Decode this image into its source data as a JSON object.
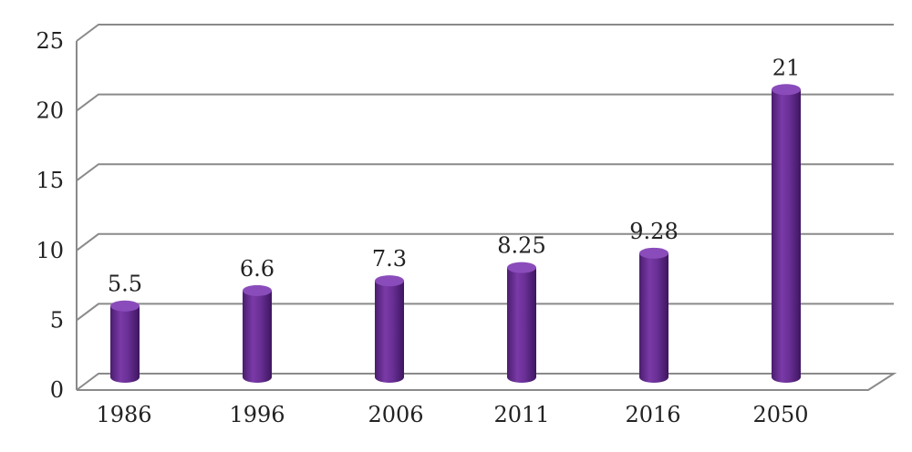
{
  "chart_data": {
    "type": "bar",
    "style": "3d-cylinder",
    "categories": [
      "1986",
      "1996",
      "2006",
      "2011",
      "2016",
      "2050"
    ],
    "values": [
      5.5,
      6.6,
      7.3,
      8.25,
      9.28,
      21
    ],
    "data_labels": [
      "5.5",
      "6.6",
      "7.3",
      "8.25",
      "9.28",
      "21"
    ],
    "y_ticks": [
      "0",
      "5",
      "10",
      "15",
      "20",
      "25"
    ],
    "ylim": [
      0,
      25
    ],
    "title": "",
    "xlabel": "",
    "ylabel": "",
    "grid": true,
    "legend": "none",
    "bar_color": "#6a3096"
  }
}
